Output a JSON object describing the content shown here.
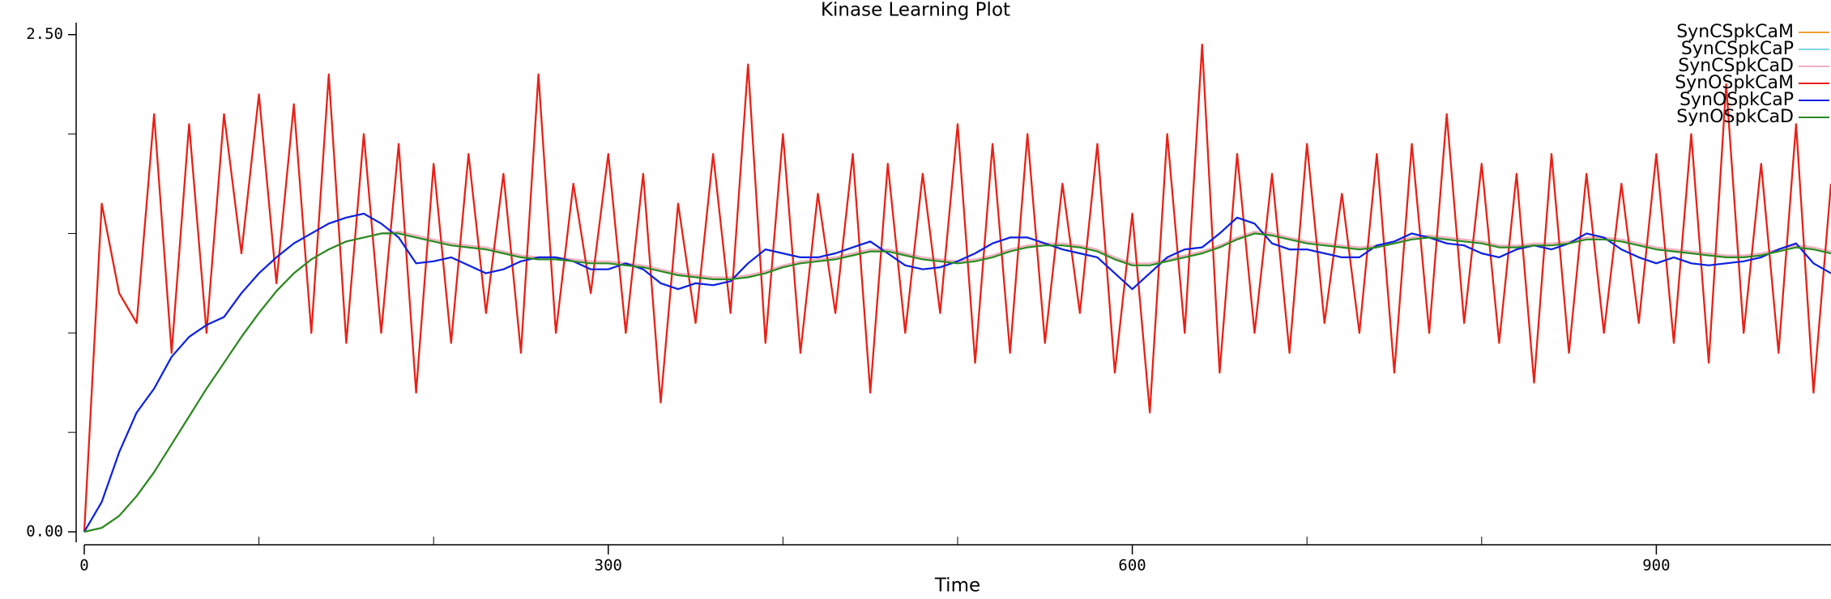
{
  "chart_data": {
    "type": "line",
    "title": "Kinase Learning Plot",
    "x_label": "Time",
    "x": [
      0,
      10,
      20,
      30,
      40,
      50,
      60,
      70,
      80,
      90,
      100,
      110,
      120,
      130,
      140,
      150,
      160,
      170,
      180,
      190,
      200,
      210,
      220,
      230,
      240,
      250,
      260,
      270,
      280,
      290,
      300,
      310,
      320,
      330,
      340,
      350,
      360,
      370,
      380,
      390,
      400,
      410,
      420,
      430,
      440,
      450,
      460,
      470,
      480,
      490,
      500,
      510,
      520,
      530,
      540,
      550,
      560,
      570,
      580,
      590,
      600,
      610,
      620,
      630,
      640,
      650,
      660,
      670,
      680,
      690,
      700,
      710,
      720,
      730,
      740,
      750,
      760,
      770,
      780,
      790,
      800,
      810,
      820,
      830,
      840,
      850,
      860,
      870,
      880,
      890,
      900,
      910,
      920,
      930,
      940,
      950,
      960,
      970,
      980,
      990,
      1000
    ],
    "xlim": [
      0,
      1000
    ],
    "xticks": [
      0,
      300,
      600,
      900
    ],
    "xminorticks": [
      100,
      200,
      400,
      500,
      700,
      800
    ],
    "ylim": [
      0,
      2.56
    ],
    "yticks": [
      {
        "value": 0,
        "label": "0.00"
      },
      {
        "value": 2.5,
        "label": "2.50"
      }
    ],
    "yminorticks": [
      0.5,
      1,
      1.5,
      2
    ],
    "series": [
      {
        "name": "SynCSpkCaM",
        "color": "#f0a030",
        "values": [
          0,
          1.65,
          1.2,
          1.05,
          2.1,
          0.9,
          2.05,
          1.0,
          2.1,
          1.4,
          2.2,
          1.25,
          2.15,
          1.0,
          2.3,
          0.95,
          2.0,
          1.0,
          1.95,
          0.7,
          1.85,
          0.95,
          1.9,
          1.1,
          1.8,
          0.9,
          2.3,
          1.0,
          1.75,
          1.2,
          1.9,
          1.0,
          1.8,
          0.65,
          1.65,
          1.05,
          1.9,
          1.1,
          2.35,
          0.95,
          2.0,
          0.9,
          1.7,
          1.1,
          1.9,
          0.7,
          1.85,
          1.0,
          1.8,
          1.1,
          2.05,
          0.85,
          1.95,
          0.9,
          2.0,
          0.95,
          1.75,
          1.1,
          1.95,
          0.8,
          1.6,
          0.6,
          2.0,
          1.0,
          2.45,
          0.8,
          1.9,
          1.0,
          1.8,
          0.9,
          1.95,
          1.05,
          1.7,
          1.0,
          1.9,
          0.8,
          1.95,
          1.0,
          2.1,
          1.05,
          1.85,
          0.95,
          1.8,
          0.75,
          1.9,
          0.9,
          1.8,
          1.0,
          1.75,
          1.05,
          1.9,
          0.95,
          2.0,
          0.85,
          2.25,
          1.0,
          1.85,
          0.9,
          2.05,
          0.7,
          1.75
        ]
      },
      {
        "name": "SynCSpkCaP",
        "color": "#7fd8e0",
        "values": [
          0,
          0.15,
          0.4,
          0.6,
          0.72,
          0.88,
          0.98,
          1.04,
          1.08,
          1.2,
          1.3,
          1.38,
          1.45,
          1.5,
          1.55,
          1.58,
          1.6,
          1.55,
          1.48,
          1.35,
          1.36,
          1.38,
          1.34,
          1.3,
          1.32,
          1.36,
          1.38,
          1.38,
          1.36,
          1.32,
          1.32,
          1.35,
          1.32,
          1.25,
          1.22,
          1.25,
          1.24,
          1.26,
          1.35,
          1.42,
          1.4,
          1.38,
          1.38,
          1.4,
          1.43,
          1.46,
          1.4,
          1.34,
          1.32,
          1.33,
          1.36,
          1.4,
          1.45,
          1.48,
          1.48,
          1.45,
          1.42,
          1.4,
          1.38,
          1.3,
          1.22,
          1.3,
          1.38,
          1.42,
          1.43,
          1.5,
          1.58,
          1.55,
          1.45,
          1.42,
          1.42,
          1.4,
          1.38,
          1.38,
          1.44,
          1.46,
          1.5,
          1.48,
          1.45,
          1.44,
          1.4,
          1.38,
          1.42,
          1.44,
          1.42,
          1.45,
          1.5,
          1.48,
          1.42,
          1.38,
          1.35,
          1.38,
          1.35,
          1.34,
          1.35,
          1.36,
          1.38,
          1.42,
          1.45,
          1.35,
          1.3
        ]
      },
      {
        "name": "SynCSpkCaD",
        "color": "#f0b0c0",
        "values": [
          0,
          0.02,
          0.08,
          0.18,
          0.3,
          0.44,
          0.58,
          0.72,
          0.85,
          0.98,
          1.1,
          1.21,
          1.3,
          1.37,
          1.42,
          1.46,
          1.48,
          1.5,
          1.51,
          1.49,
          1.47,
          1.45,
          1.44,
          1.43,
          1.41,
          1.39,
          1.38,
          1.38,
          1.37,
          1.36,
          1.36,
          1.35,
          1.34,
          1.32,
          1.3,
          1.29,
          1.28,
          1.28,
          1.29,
          1.31,
          1.34,
          1.36,
          1.37,
          1.38,
          1.4,
          1.42,
          1.42,
          1.4,
          1.38,
          1.37,
          1.36,
          1.37,
          1.39,
          1.42,
          1.44,
          1.45,
          1.45,
          1.44,
          1.42,
          1.38,
          1.35,
          1.35,
          1.37,
          1.39,
          1.41,
          1.44,
          1.48,
          1.51,
          1.5,
          1.48,
          1.46,
          1.45,
          1.44,
          1.43,
          1.44,
          1.46,
          1.48,
          1.49,
          1.48,
          1.47,
          1.46,
          1.44,
          1.44,
          1.45,
          1.45,
          1.46,
          1.48,
          1.48,
          1.47,
          1.45,
          1.43,
          1.42,
          1.41,
          1.4,
          1.39,
          1.39,
          1.4,
          1.42,
          1.44,
          1.43,
          1.41
        ]
      },
      {
        "name": "SynOSpkCaM",
        "color": "#e8201c",
        "values": [
          0,
          1.65,
          1.2,
          1.05,
          2.1,
          0.9,
          2.05,
          1.0,
          2.1,
          1.4,
          2.2,
          1.25,
          2.15,
          1.0,
          2.3,
          0.95,
          2.0,
          1.0,
          1.95,
          0.7,
          1.85,
          0.95,
          1.9,
          1.1,
          1.8,
          0.9,
          2.3,
          1.0,
          1.75,
          1.2,
          1.9,
          1.0,
          1.8,
          0.65,
          1.65,
          1.05,
          1.9,
          1.1,
          2.35,
          0.95,
          2.0,
          0.9,
          1.7,
          1.1,
          1.9,
          0.7,
          1.85,
          1.0,
          1.8,
          1.1,
          2.05,
          0.85,
          1.95,
          0.9,
          2.0,
          0.95,
          1.75,
          1.1,
          1.95,
          0.8,
          1.6,
          0.6,
          2.0,
          1.0,
          2.45,
          0.8,
          1.9,
          1.0,
          1.8,
          0.9,
          1.95,
          1.05,
          1.7,
          1.0,
          1.9,
          0.8,
          1.95,
          1.0,
          2.1,
          1.05,
          1.85,
          0.95,
          1.8,
          0.75,
          1.9,
          0.9,
          1.8,
          1.0,
          1.75,
          1.05,
          1.9,
          0.95,
          2.0,
          0.85,
          2.25,
          1.0,
          1.85,
          0.9,
          2.05,
          0.7,
          1.75
        ]
      },
      {
        "name": "SynOSpkCaP",
        "color": "#1020e0",
        "values": [
          0,
          0.15,
          0.4,
          0.6,
          0.72,
          0.88,
          0.98,
          1.04,
          1.08,
          1.2,
          1.3,
          1.38,
          1.45,
          1.5,
          1.55,
          1.58,
          1.6,
          1.55,
          1.48,
          1.35,
          1.36,
          1.38,
          1.34,
          1.3,
          1.32,
          1.36,
          1.38,
          1.38,
          1.36,
          1.32,
          1.32,
          1.35,
          1.32,
          1.25,
          1.22,
          1.25,
          1.24,
          1.26,
          1.35,
          1.42,
          1.4,
          1.38,
          1.38,
          1.4,
          1.43,
          1.46,
          1.4,
          1.34,
          1.32,
          1.33,
          1.36,
          1.4,
          1.45,
          1.48,
          1.48,
          1.45,
          1.42,
          1.4,
          1.38,
          1.3,
          1.22,
          1.3,
          1.38,
          1.42,
          1.43,
          1.5,
          1.58,
          1.55,
          1.45,
          1.42,
          1.42,
          1.4,
          1.38,
          1.38,
          1.44,
          1.46,
          1.5,
          1.48,
          1.45,
          1.44,
          1.4,
          1.38,
          1.42,
          1.44,
          1.42,
          1.45,
          1.5,
          1.48,
          1.42,
          1.38,
          1.35,
          1.38,
          1.35,
          1.34,
          1.35,
          1.36,
          1.38,
          1.42,
          1.45,
          1.35,
          1.3
        ]
      },
      {
        "name": "SynOSpkCaD",
        "color": "#2a8a20",
        "values": [
          0,
          0.02,
          0.08,
          0.18,
          0.3,
          0.44,
          0.58,
          0.72,
          0.85,
          0.98,
          1.1,
          1.21,
          1.3,
          1.37,
          1.42,
          1.46,
          1.48,
          1.5,
          1.5,
          1.48,
          1.46,
          1.44,
          1.43,
          1.42,
          1.4,
          1.38,
          1.37,
          1.37,
          1.36,
          1.35,
          1.35,
          1.34,
          1.33,
          1.31,
          1.29,
          1.28,
          1.27,
          1.27,
          1.28,
          1.3,
          1.33,
          1.35,
          1.36,
          1.37,
          1.39,
          1.41,
          1.41,
          1.39,
          1.37,
          1.36,
          1.35,
          1.36,
          1.38,
          1.41,
          1.43,
          1.44,
          1.44,
          1.43,
          1.41,
          1.37,
          1.34,
          1.34,
          1.36,
          1.38,
          1.4,
          1.43,
          1.47,
          1.5,
          1.49,
          1.47,
          1.45,
          1.44,
          1.43,
          1.42,
          1.43,
          1.45,
          1.47,
          1.48,
          1.47,
          1.46,
          1.45,
          1.43,
          1.43,
          1.44,
          1.44,
          1.45,
          1.47,
          1.47,
          1.46,
          1.44,
          1.42,
          1.41,
          1.4,
          1.39,
          1.38,
          1.38,
          1.39,
          1.41,
          1.43,
          1.42,
          1.4
        ]
      }
    ]
  }
}
